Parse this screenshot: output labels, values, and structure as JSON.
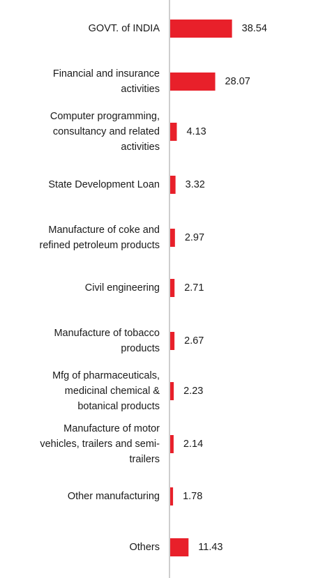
{
  "chart_data": {
    "type": "bar",
    "orientation": "horizontal",
    "categories": [
      "GOVT. of INDIA",
      "Financial and insurance activities",
      "Computer programming, consultancy and related activities",
      "State Development Loan",
      "Manufacture of coke and refined petroleum products",
      "Civil engineering",
      "Manufacture of tobacco products",
      "Mfg of pharmaceuticals, medicinal chemical & botanical products",
      "Manufacture of motor vehicles, trailers and semi-trailers",
      "Other manufacturing",
      "Others"
    ],
    "category_lines": [
      [
        "GOVT. of INDIA"
      ],
      [
        "Financial and insurance",
        "activities"
      ],
      [
        "Computer programming,",
        "consultancy and related",
        "activities"
      ],
      [
        "State Development Loan"
      ],
      [
        "Manufacture of coke and",
        "refined petroleum products"
      ],
      [
        "Civil engineering"
      ],
      [
        "Manufacture of tobacco",
        "products"
      ],
      [
        "Mfg of pharmaceuticals,",
        "medicinal chemical &",
        "botanical products"
      ],
      [
        "Manufacture of motor",
        "vehicles, trailers and semi-",
        "trailers"
      ],
      [
        "Other manufacturing"
      ],
      [
        "Others"
      ]
    ],
    "values": [
      38.54,
      28.07,
      4.13,
      3.32,
      2.97,
      2.71,
      2.67,
      2.23,
      2.14,
      1.78,
      11.43
    ],
    "value_labels": [
      "38.54",
      "28.07",
      "4.13",
      "3.32",
      "2.97",
      "2.71",
      "2.67",
      "2.23",
      "2.14",
      "1.78",
      "11.43"
    ],
    "grid": false,
    "bar_color": "#e8202a",
    "axis_color": "#bdbdbd"
  }
}
